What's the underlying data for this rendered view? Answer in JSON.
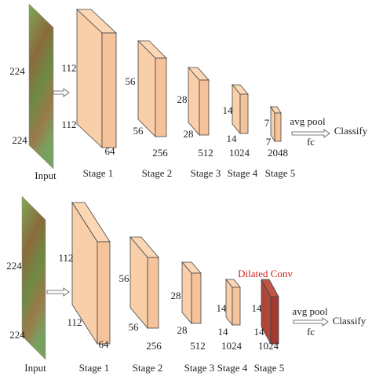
{
  "diagrams": [
    {
      "input": {
        "label": "Input",
        "height": "224",
        "width": "224"
      },
      "stages": [
        {
          "name": "Stage 1",
          "height": "112",
          "width": "112",
          "channels": "64"
        },
        {
          "name": "Stage 2",
          "height": "56",
          "width": "56",
          "channels": "256"
        },
        {
          "name": "Stage 3",
          "height": "28",
          "width": "28",
          "channels": "512"
        },
        {
          "name": "Stage 4",
          "height": "14",
          "width": "14",
          "channels": "1024"
        },
        {
          "name": "Stage 5",
          "height": "7",
          "width": "7",
          "channels": "2048"
        }
      ],
      "pool": "avg pool",
      "fc": "fc",
      "output": "Classify"
    },
    {
      "input": {
        "label": "Input",
        "height": "224",
        "width": "224"
      },
      "stages": [
        {
          "name": "Stage 1",
          "height": "112",
          "width": "112",
          "channels": "64"
        },
        {
          "name": "Stage 2",
          "height": "56",
          "width": "56",
          "channels": "256"
        },
        {
          "name": "Stage 3",
          "height": "28",
          "width": "28",
          "channels": "512"
        },
        {
          "name": "Stage 4",
          "height": "14",
          "width": "14",
          "channels": "1024"
        },
        {
          "name": "Stage 5",
          "height": "14",
          "width": "14",
          "channels": "1024"
        }
      ],
      "annotation": "Dilated Conv",
      "pool": "avg pool",
      "fc": "fc",
      "output": "Classify"
    }
  ]
}
